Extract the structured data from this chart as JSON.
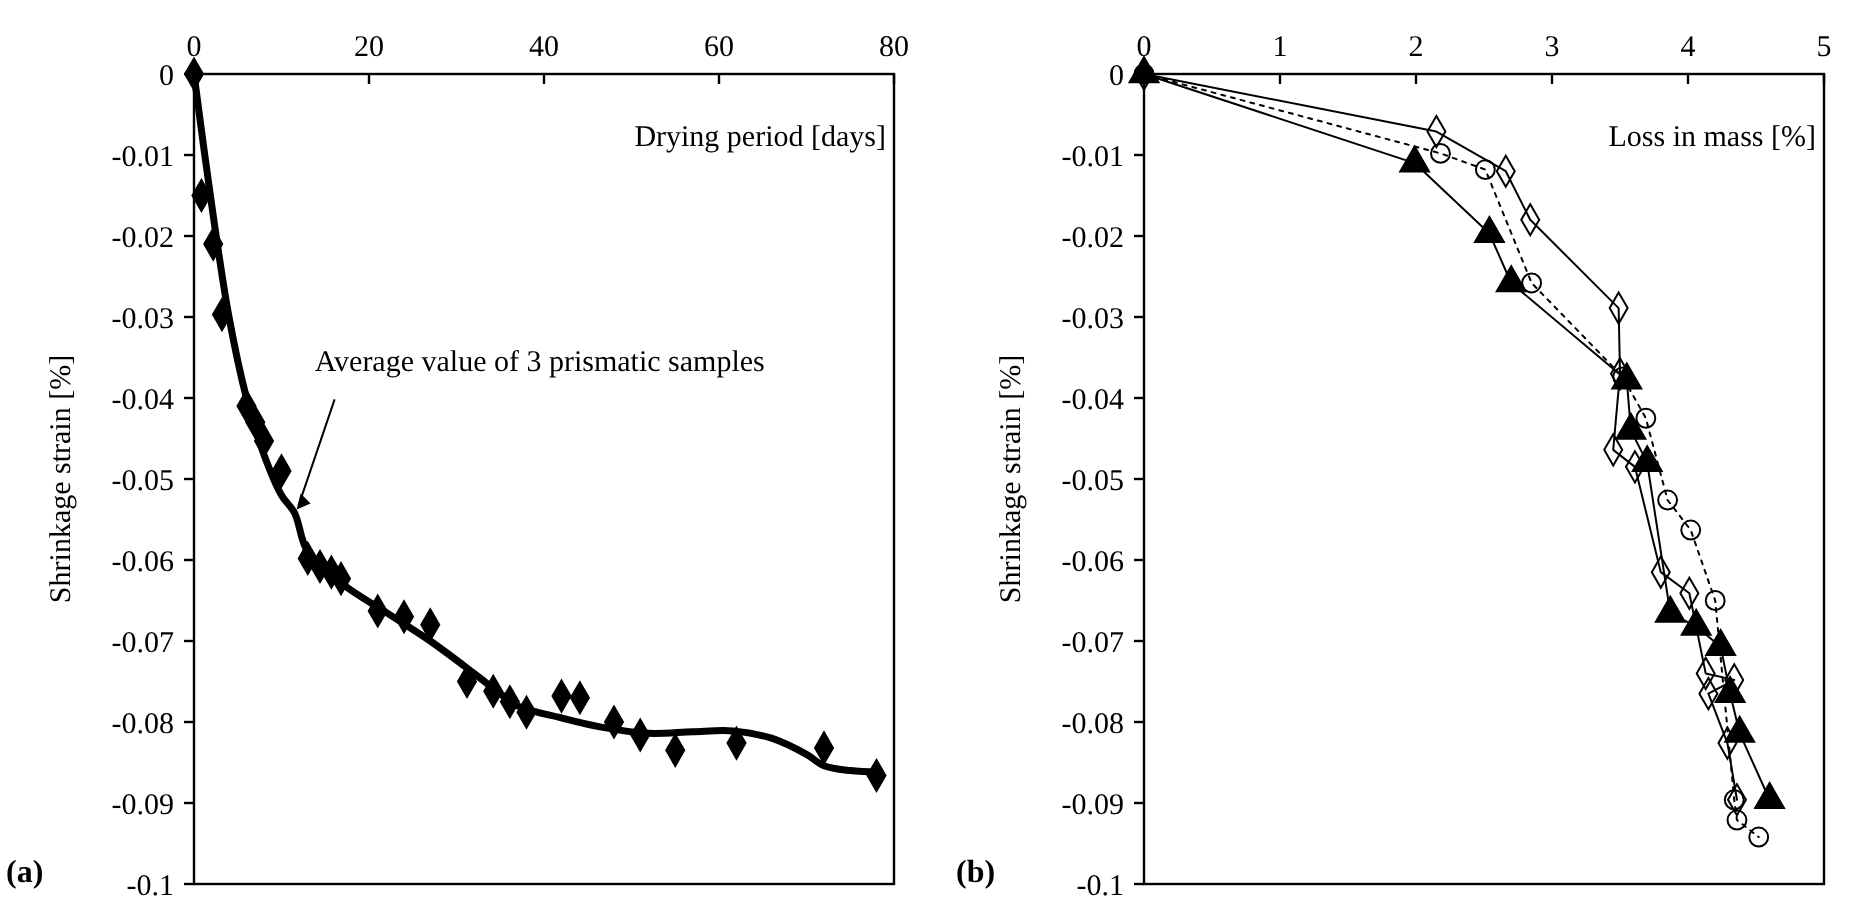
{
  "chart_data": [
    {
      "type": "scatter",
      "xlabel": "Drying period [days]",
      "ylabel": "Shrinkage strain [%]",
      "xlim": [
        0,
        80
      ],
      "ylim": [
        -0.1,
        0
      ],
      "xticks": [
        0,
        20,
        40,
        60,
        80
      ],
      "yticks": [
        0,
        -0.01,
        -0.02,
        -0.03,
        -0.04,
        -0.05,
        -0.06,
        -0.07,
        -0.08,
        -0.09,
        -0.1
      ],
      "annotations": [
        "(a)",
        {
          "text": "Average value of 3 prismatic samples",
          "x": 11.5,
          "y": -0.054
        }
      ],
      "series": [
        {
          "color": "#000000",
          "marker": "diamond",
          "x": [
            0,
            0.85,
            2.2,
            3.2,
            6,
            7,
            8,
            10,
            13,
            14.4,
            15.7,
            16.8,
            21,
            24,
            27,
            31.2,
            34.2,
            36.1,
            38,
            42,
            44.1,
            48,
            51,
            55,
            62,
            72,
            78
          ],
          "values": [
            0,
            -0.015,
            -0.021,
            -0.0297,
            -0.041,
            -0.043,
            -0.0453,
            -0.049,
            -0.0598,
            -0.0608,
            -0.0615,
            -0.0623,
            -0.0663,
            -0.067,
            -0.068,
            -0.075,
            -0.0762,
            -0.0775,
            -0.0788,
            -0.0768,
            -0.077,
            -0.08,
            -0.0816,
            -0.0835,
            -0.0826,
            -0.0832,
            -0.0866
          ]
        },
        {
          "type": "line",
          "color": "#000000",
          "marker": "none",
          "line_style": "solid",
          "x": [
            0,
            2,
            4,
            6,
            8,
            10,
            11.5,
            13,
            17,
            22,
            27,
            32,
            35,
            37,
            42,
            46.4,
            52,
            57,
            61.6,
            66,
            70,
            72,
            75,
            78.4
          ],
          "values": [
            0,
            -0.016,
            -0.03,
            -0.04,
            -0.047,
            -0.052,
            -0.0542,
            -0.059,
            -0.063,
            -0.0665,
            -0.07,
            -0.074,
            -0.0765,
            -0.078,
            -0.0795,
            -0.0806,
            -0.0814,
            -0.0812,
            -0.0811,
            -0.082,
            -0.084,
            -0.0854,
            -0.086,
            -0.0862
          ]
        }
      ]
    },
    {
      "type": "line",
      "xlabel": "Loss in mass [%]",
      "ylabel": "Shrinkage strain [%]",
      "xlim": [
        0,
        5
      ],
      "ylim": [
        -0.1,
        0
      ],
      "xticks": [
        0,
        1,
        2,
        3,
        4,
        5
      ],
      "yticks": [
        0,
        -0.01,
        -0.02,
        -0.03,
        -0.04,
        -0.05,
        -0.06,
        -0.07,
        -0.08,
        -0.09,
        -0.1
      ],
      "annotations": [
        "(b)"
      ],
      "series": [
        {
          "color": "#000000",
          "marker": "diamond",
          "line_style": "solid",
          "x": [
            0,
            2.15,
            2.66,
            2.84,
            3.49,
            3.5,
            3.45,
            3.61,
            3.8,
            4.01,
            4.13,
            4.34,
            4.15,
            4.29,
            4.36
          ],
          "values": [
            0,
            -0.0071,
            -0.012,
            -0.018,
            -0.0289,
            -0.037,
            -0.0464,
            -0.0485,
            -0.0615,
            -0.0641,
            -0.074,
            -0.0748,
            -0.0765,
            -0.0826,
            -0.0896
          ]
        },
        {
          "color": "#000000",
          "marker": "circle",
          "line_style": "dotted",
          "x": [
            0,
            2.18,
            2.51,
            2.85,
            3.52,
            3.69,
            3.85,
            4.02,
            4.2,
            4.34,
            4.36,
            4.52
          ],
          "values": [
            0,
            -0.0098,
            -0.0118,
            -0.0258,
            -0.0374,
            -0.0425,
            -0.0526,
            -0.0563,
            -0.065,
            -0.0896,
            -0.0921,
            -0.0942
          ]
        },
        {
          "color": "#000000",
          "marker": "triangle",
          "line_style": "solid",
          "x": [
            0,
            1.99,
            2.54,
            2.7,
            3.55,
            3.58,
            3.7,
            3.87,
            4.06,
            4.24,
            4.31,
            4.38,
            4.6
          ],
          "values": [
            0,
            -0.011,
            -0.0197,
            -0.0258,
            -0.0378,
            -0.044,
            -0.048,
            -0.0666,
            -0.0682,
            -0.0707,
            -0.0765,
            -0.0814,
            -0.0896
          ]
        }
      ]
    }
  ]
}
